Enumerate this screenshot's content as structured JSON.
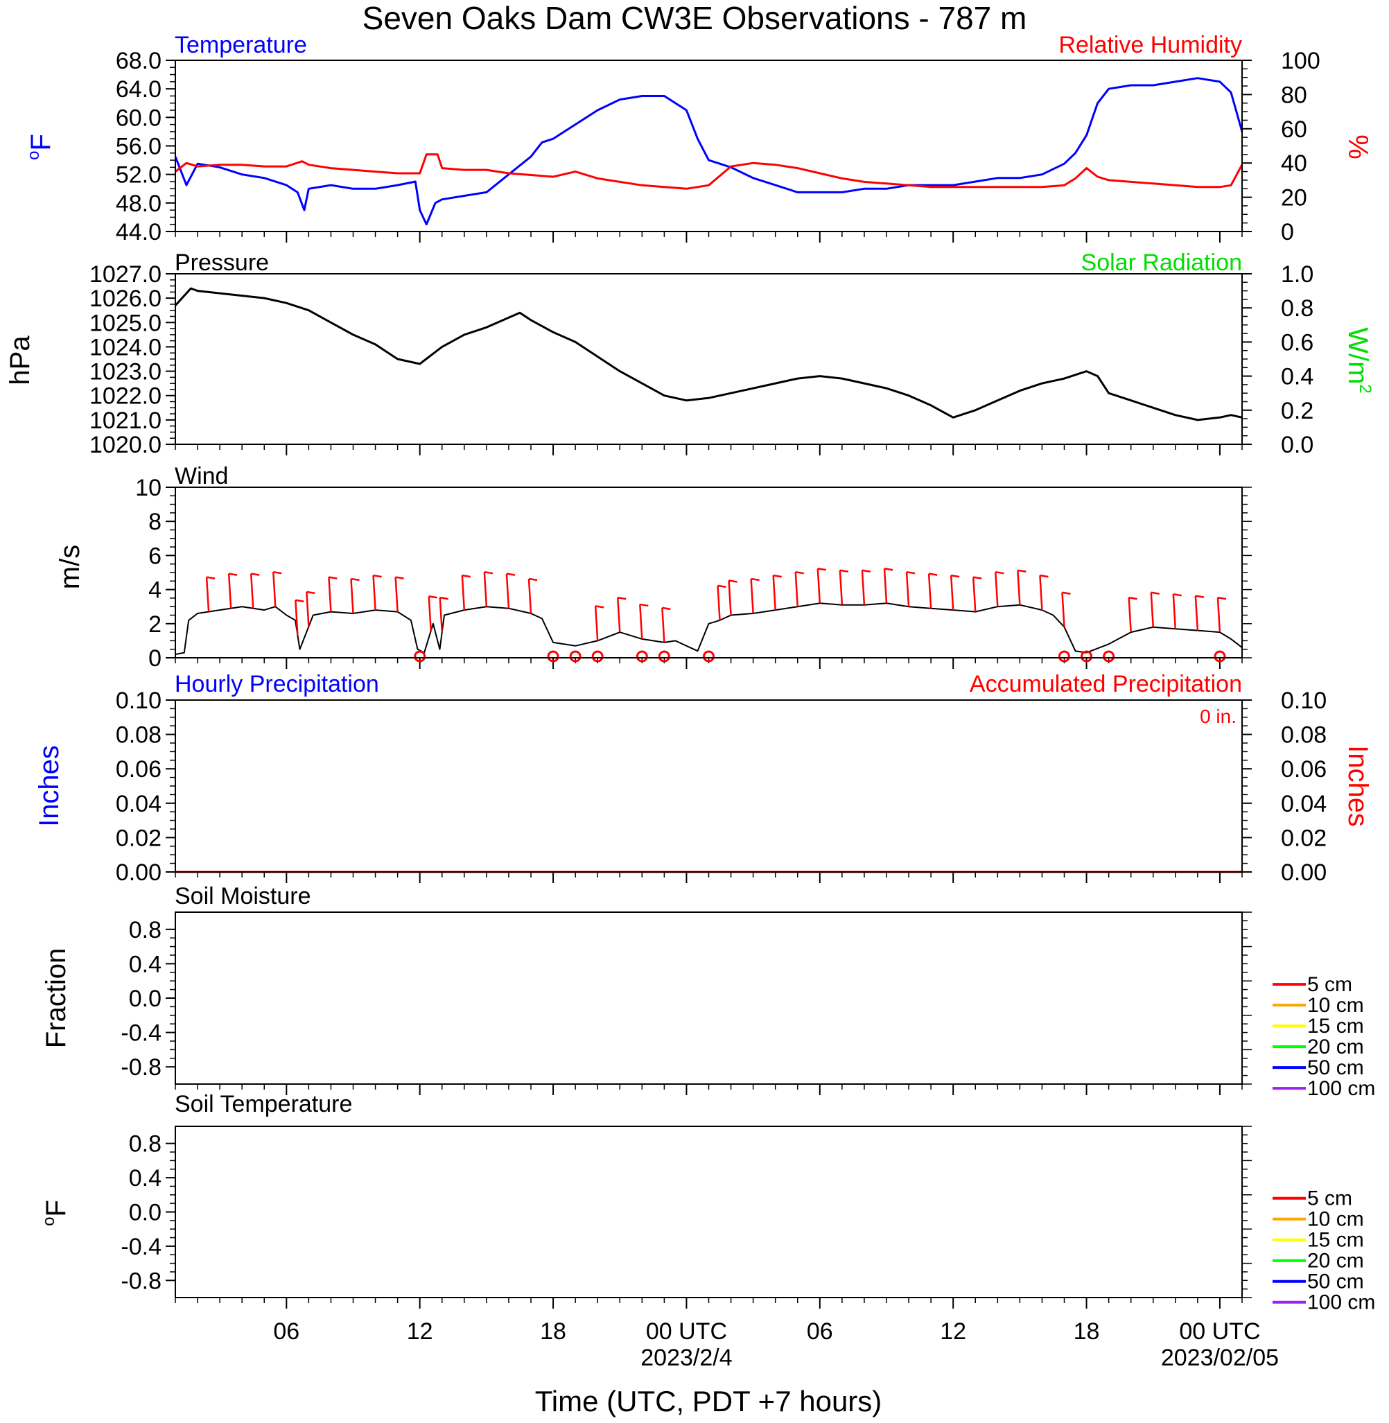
{
  "title": "Seven Oaks Dam CW3E Observations - 787 m",
  "x_axis": {
    "label": "Time (UTC, PDT +7 hours)",
    "tick_labels": [
      "06",
      "12",
      "18",
      "00 UTC",
      "06",
      "12",
      "18",
      "00 UTC"
    ],
    "tick_hours": [
      6,
      12,
      18,
      24,
      30,
      36,
      42,
      48
    ],
    "date_labels": [
      {
        "text": "2023/2/4",
        "hour": 24
      },
      {
        "text": "2023/02/05",
        "hour": 48
      }
    ],
    "range_hours": [
      1,
      49
    ]
  },
  "colors": {
    "temperature": "#0000ff",
    "humidity": "#ff0000",
    "pressure": "#000000",
    "solar": "#00dd00",
    "wind": "#000000",
    "wind_barb": "#ff0000",
    "hourly_precip": "#0000ff",
    "accum_precip": "#ff0000",
    "depth_5cm": "#ff0000",
    "depth_10cm": "#ffa500",
    "depth_15cm": "#ffff00",
    "depth_20cm": "#00ff00",
    "depth_50cm": "#0000ff",
    "depth_100cm": "#a020f0"
  },
  "chart_data": [
    {
      "type": "line",
      "panel": "temperature_humidity",
      "left_title": "Temperature",
      "right_title": "Relative Humidity",
      "ylabel_left": "oF",
      "ylabel_right": "%",
      "ylim_left": [
        44,
        68
      ],
      "ylim_right": [
        0,
        100
      ],
      "yticks_left": [
        "44.0",
        "48.0",
        "52.0",
        "56.0",
        "60.0",
        "64.0",
        "68.0"
      ],
      "yticks_right": [
        "0",
        "20",
        "40",
        "60",
        "80",
        "100"
      ],
      "series": [
        {
          "name": "Temperature",
          "axis": "left",
          "x": [
            1,
            1.5,
            2,
            3,
            4,
            5,
            6,
            6.5,
            6.8,
            7,
            8,
            9,
            10,
            11,
            11.8,
            12,
            12.3,
            12.7,
            13,
            14,
            15,
            16,
            17,
            17.5,
            18,
            18.5,
            19,
            20,
            21,
            22,
            23,
            24,
            24.5,
            25,
            25.5,
            26,
            27,
            28,
            29,
            30,
            31,
            32,
            33,
            34,
            35,
            36,
            37,
            38,
            39,
            40,
            41,
            41.5,
            42,
            42.5,
            43,
            44,
            45,
            46,
            47,
            48,
            48.5,
            49
          ],
          "values": [
            54.5,
            50.5,
            53.5,
            53,
            52,
            51.5,
            50.5,
            49.5,
            47,
            50,
            50.5,
            50,
            50,
            50.5,
            51,
            47,
            45,
            48,
            48.5,
            49,
            49.5,
            52,
            54.5,
            56.5,
            57,
            58,
            59,
            61,
            62.5,
            63,
            63,
            61,
            57,
            54,
            53.5,
            53,
            51.5,
            50.5,
            49.5,
            49.5,
            49.5,
            50,
            50,
            50.5,
            50.5,
            50.5,
            51,
            51.5,
            51.5,
            52,
            53.5,
            55,
            57.5,
            62,
            64,
            64.5,
            64.5,
            65,
            65.5,
            65,
            63.5,
            58
          ]
        },
        {
          "name": "Relative Humidity",
          "axis": "right",
          "x": [
            1,
            1.5,
            2,
            3,
            4,
            5,
            6,
            6.7,
            7,
            8,
            9,
            10,
            11,
            12,
            12.3,
            12.8,
            13,
            14,
            15,
            16,
            17,
            18,
            19,
            20,
            21,
            22,
            23,
            24,
            25,
            26,
            27,
            28,
            29,
            30,
            31,
            32,
            33,
            34,
            35,
            36,
            37,
            38,
            39,
            40,
            41,
            41.5,
            42,
            42.5,
            43,
            44,
            45,
            46,
            47,
            48,
            48.5,
            49
          ],
          "values": [
            35,
            40,
            38,
            39,
            39,
            38,
            38,
            41,
            39,
            37,
            36,
            35,
            34,
            34,
            45,
            45,
            37,
            36,
            36,
            34,
            33,
            32,
            35,
            31,
            29,
            27,
            26,
            25,
            27,
            38,
            40,
            39,
            37,
            34,
            31,
            29,
            28,
            27,
            26,
            26,
            26,
            26,
            26,
            26,
            27,
            31,
            37,
            32,
            30,
            29,
            28,
            27,
            26,
            26,
            27,
            39
          ]
        }
      ]
    },
    {
      "type": "line",
      "panel": "pressure_solar",
      "left_title": "Pressure",
      "right_title": "Solar Radiation",
      "ylabel_left": "hPa",
      "ylabel_right": "W/m",
      "ylabel_right_sup": "2",
      "ylim_left": [
        1020,
        1027
      ],
      "ylim_right": [
        0,
        1
      ],
      "yticks_left": [
        "1020.0",
        "1021.0",
        "1022.0",
        "1023.0",
        "1024.0",
        "1025.0",
        "1026.0",
        "1027.0"
      ],
      "yticks_right": [
        "0.0",
        "0.2",
        "0.4",
        "0.6",
        "0.8",
        "1.0"
      ],
      "series": [
        {
          "name": "Pressure",
          "axis": "left",
          "x": [
            1,
            1.3,
            1.7,
            2,
            3,
            4,
            5,
            6,
            7,
            8,
            9,
            10,
            11,
            12,
            13,
            14,
            15,
            16,
            16.5,
            17,
            18,
            19,
            20,
            21,
            22,
            23,
            24,
            25,
            26,
            27,
            28,
            29,
            30,
            31,
            32,
            33,
            34,
            35,
            36,
            37,
            38,
            39,
            40,
            41,
            42,
            42.5,
            43,
            44,
            45,
            46,
            47,
            48,
            48.5,
            49
          ],
          "values": [
            1025.7,
            1026.0,
            1026.4,
            1026.3,
            1026.2,
            1026.1,
            1026.0,
            1025.8,
            1025.5,
            1025.0,
            1024.5,
            1024.1,
            1023.5,
            1023.3,
            1024.0,
            1024.5,
            1024.8,
            1025.2,
            1025.4,
            1025.1,
            1024.6,
            1024.2,
            1023.6,
            1023.0,
            1022.5,
            1022.0,
            1021.8,
            1021.9,
            1022.1,
            1022.3,
            1022.5,
            1022.7,
            1022.8,
            1022.7,
            1022.5,
            1022.3,
            1022.0,
            1021.6,
            1021.1,
            1021.4,
            1021.8,
            1022.2,
            1022.5,
            1022.7,
            1023.0,
            1022.8,
            1022.1,
            1021.8,
            1021.5,
            1021.2,
            1021.0,
            1021.1,
            1021.2,
            1021.1
          ]
        }
      ]
    },
    {
      "type": "line",
      "panel": "wind",
      "left_title": "Wind",
      "ylabel_left": "m/s",
      "ylim_left": [
        0,
        10
      ],
      "yticks_left": [
        "0",
        "2",
        "4",
        "6",
        "8",
        "10"
      ],
      "series": [
        {
          "name": "Wind",
          "axis": "left",
          "x": [
            1,
            1.4,
            1.6,
            2,
            3,
            4,
            5,
            5.5,
            6,
            6.4,
            6.6,
            6.9,
            7.2,
            8,
            9,
            10,
            11,
            11.6,
            11.9,
            12.2,
            12.6,
            12.9,
            13.1,
            14,
            15,
            16,
            17,
            17.5,
            18,
            19,
            20,
            21,
            22,
            23,
            23.5,
            24,
            24.5,
            25,
            25.5,
            26,
            27,
            28,
            29,
            30,
            31,
            32,
            33,
            34,
            35,
            36,
            37,
            38,
            39,
            40,
            40.5,
            41,
            41.5,
            42,
            43,
            44,
            45,
            46,
            47,
            48,
            48.5,
            49
          ],
          "values": [
            0.2,
            0.3,
            2.2,
            2.6,
            2.8,
            3.0,
            2.8,
            3.0,
            2.5,
            2.2,
            0.5,
            1.5,
            2.5,
            2.7,
            2.6,
            2.8,
            2.7,
            2.2,
            0.5,
            0.3,
            2.0,
            0.5,
            2.5,
            2.8,
            3.0,
            2.9,
            2.6,
            2.3,
            0.9,
            0.7,
            1.0,
            1.5,
            1.1,
            0.9,
            1.0,
            0.7,
            0.4,
            2.0,
            2.2,
            2.5,
            2.6,
            2.8,
            3.0,
            3.2,
            3.1,
            3.1,
            3.2,
            3.0,
            2.9,
            2.8,
            2.7,
            3.0,
            3.1,
            2.8,
            2.5,
            1.8,
            0.4,
            0.3,
            0.8,
            1.5,
            1.8,
            1.7,
            1.6,
            1.5,
            1.1,
            0.6
          ]
        }
      ],
      "barb_times": [
        2.5,
        3.5,
        4.5,
        5.5,
        6.5,
        7,
        8,
        9,
        10,
        11,
        12.5,
        13,
        14,
        15,
        16,
        17,
        20,
        21,
        22,
        23,
        25.5,
        26,
        27,
        28,
        29,
        30,
        31,
        32,
        33,
        34,
        35,
        36,
        37,
        38,
        39,
        40,
        41,
        44,
        45,
        46,
        47,
        48
      ],
      "calm_times": [
        12,
        18,
        19,
        20,
        22,
        23,
        25,
        41,
        42,
        43,
        48
      ]
    },
    {
      "type": "line",
      "panel": "precipitation",
      "left_title": "Hourly Precipitation",
      "right_title": "Accumulated Precipitation",
      "annotation": "0 in.",
      "ylabel_left": "Inches",
      "ylabel_right": "Inches",
      "ylim_left": [
        0,
        0.1
      ],
      "ylim_right": [
        0,
        0.1
      ],
      "yticks_left": [
        "0.00",
        "0.02",
        "0.04",
        "0.06",
        "0.08",
        "0.10"
      ],
      "yticks_right": [
        "0.00",
        "0.02",
        "0.04",
        "0.06",
        "0.08",
        "0.10"
      ],
      "series": [
        {
          "name": "Hourly Precipitation",
          "axis": "left",
          "x": [
            1,
            49
          ],
          "values": [
            0,
            0
          ]
        },
        {
          "name": "Accumulated Precipitation",
          "axis": "right",
          "x": [
            1,
            49
          ],
          "values": [
            0,
            0
          ]
        }
      ]
    },
    {
      "type": "line",
      "panel": "soil_moisture",
      "left_title": "Soil Moisture",
      "ylabel_left": "Fraction",
      "ylim_left": [
        -1,
        1
      ],
      "yticks_left": [
        "-0.8",
        "-0.4",
        "0.0",
        "0.4",
        "0.8"
      ],
      "legend": [
        "5 cm",
        "10 cm",
        "15 cm",
        "20 cm",
        "50 cm",
        "100 cm"
      ],
      "series": []
    },
    {
      "type": "line",
      "panel": "soil_temperature",
      "left_title": "Soil Temperature",
      "ylabel_left": "oF",
      "ylim_left": [
        -1,
        1
      ],
      "yticks_left": [
        "-0.8",
        "-0.4",
        "0.0",
        "0.4",
        "0.8"
      ],
      "legend": [
        "5 cm",
        "10 cm",
        "15 cm",
        "20 cm",
        "50 cm",
        "100 cm"
      ],
      "series": []
    }
  ]
}
